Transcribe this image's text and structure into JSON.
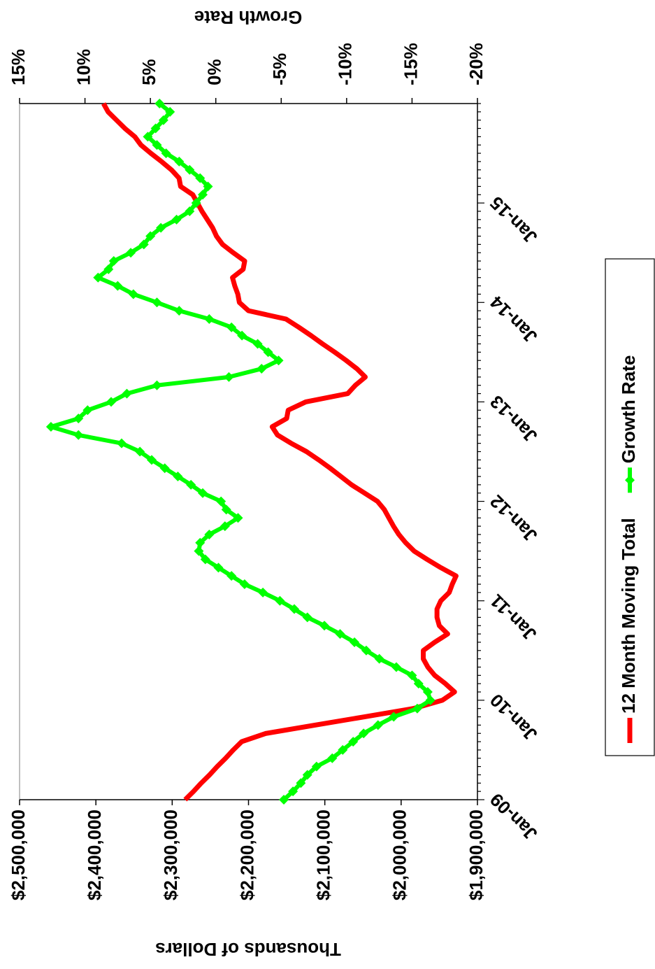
{
  "chart_data": {
    "type": "line",
    "ylabel": "Thousands of Dollars",
    "y2label": "Growth Rate",
    "categories": [
      "Jan-09",
      null,
      null,
      null,
      null,
      null,
      null,
      null,
      null,
      null,
      null,
      null,
      "Jan-10",
      null,
      null,
      null,
      null,
      null,
      null,
      null,
      null,
      null,
      null,
      null,
      "Jan-11",
      null,
      null,
      null,
      null,
      null,
      null,
      null,
      null,
      null,
      null,
      null,
      "Jan-12",
      null,
      null,
      null,
      null,
      null,
      null,
      null,
      null,
      null,
      null,
      null,
      "Jan-13",
      null,
      null,
      null,
      null,
      null,
      null,
      null,
      null,
      null,
      null,
      null,
      "Jan-14",
      null,
      null,
      null,
      null,
      null,
      null,
      null,
      null,
      null,
      null,
      null,
      "Jan-15",
      null,
      null,
      null,
      null,
      null,
      null,
      null,
      null,
      null,
      null,
      null,
      null
    ],
    "series": [
      {
        "name": "12 Month Moving Total",
        "color": "#ff0000",
        "axis": "y",
        "values": [
          2283000,
          2272000,
          2262000,
          2251000,
          2241000,
          2230000,
          2220000,
          2209000,
          2177000,
          2113000,
          2048000,
          1984000,
          1946000,
          1930000,
          1942000,
          1956000,
          1965000,
          1971000,
          1971000,
          1956000,
          1939000,
          1950000,
          1953000,
          1953000,
          1948000,
          1937000,
          1933000,
          1928000,
          1948000,
          1966000,
          1983000,
          1994000,
          2003000,
          2010000,
          2016000,
          2022000,
          2031000,
          2048000,
          2065000,
          2079000,
          2093000,
          2108000,
          2124000,
          2144000,
          2162000,
          2169000,
          2150000,
          2148000,
          2125000,
          2070000,
          2060000,
          2047000,
          2058000,
          2072000,
          2087000,
          2103000,
          2118000,
          2134000,
          2151000,
          2200000,
          2212000,
          2214000,
          2218000,
          2221000,
          2207000,
          2205000,
          2220000,
          2234000,
          2242000,
          2247000,
          2254000,
          2261000,
          2267000,
          2273000,
          2289000,
          2291000,
          2301000,
          2314000,
          2328000,
          2341000,
          2349000,
          2362000,
          2373000,
          2384000,
          2390000
        ]
      },
      {
        "name": "Growth Rate",
        "color": "#00ff00",
        "axis": "y2",
        "values": [
          -5.2,
          -5.9,
          -6.5,
          -7.0,
          -7.7,
          -8.9,
          -9.7,
          -10.5,
          -11.3,
          -12.4,
          -13.6,
          -15.4,
          -16.4,
          -16.2,
          -15.5,
          -15.0,
          -13.8,
          -12.5,
          -11.5,
          -10.6,
          -9.5,
          -8.3,
          -7.0,
          -6.0,
          -4.9,
          -3.6,
          -2.2,
          -1.2,
          -0.2,
          0.8,
          1.3,
          1.2,
          0.5,
          -0.7,
          -1.7,
          -0.8,
          -0.4,
          1.0,
          1.9,
          2.9,
          3.9,
          4.9,
          5.8,
          7.2,
          10.5,
          12.6,
          10.5,
          9.8,
          8.0,
          6.8,
          4.5,
          -1.0,
          -3.5,
          -4.8,
          -4.0,
          -3.2,
          -2.0,
          -1.2,
          0.5,
          2.8,
          4.5,
          6.3,
          7.5,
          9.0,
          8.2,
          7.8,
          6.5,
          5.5,
          5.0,
          4.2,
          3.0,
          2.0,
          1.5,
          1.0,
          0.6,
          1.2,
          2.0,
          2.8,
          3.8,
          4.5,
          5.2,
          4.6,
          4.0,
          3.5,
          4.3
        ]
      }
    ],
    "ylim": [
      1900000,
      2500000
    ],
    "yticks": [
      {
        "value": 1900000,
        "label": "$1,900,000"
      },
      {
        "value": 2000000,
        "label": "$2,000,000"
      },
      {
        "value": 2100000,
        "label": "$2,100,000"
      },
      {
        "value": 2200000,
        "label": "$2,200,000"
      },
      {
        "value": 2300000,
        "label": "$2,300,000"
      },
      {
        "value": 2400000,
        "label": "$2,400,000"
      },
      {
        "value": 2500000,
        "label": "$2,500,000"
      }
    ],
    "y2lim": [
      -20,
      15
    ],
    "y2ticks": [
      {
        "value": -20,
        "label": "-20%"
      },
      {
        "value": -15,
        "label": "-15%"
      },
      {
        "value": -10,
        "label": "-10%"
      },
      {
        "value": -5,
        "label": "-5%"
      },
      {
        "value": 0,
        "label": "0%"
      },
      {
        "value": 5,
        "label": "5%"
      },
      {
        "value": 10,
        "label": "10%"
      },
      {
        "value": 15,
        "label": "15%"
      }
    ],
    "grid": false,
    "legend": "bottom"
  }
}
